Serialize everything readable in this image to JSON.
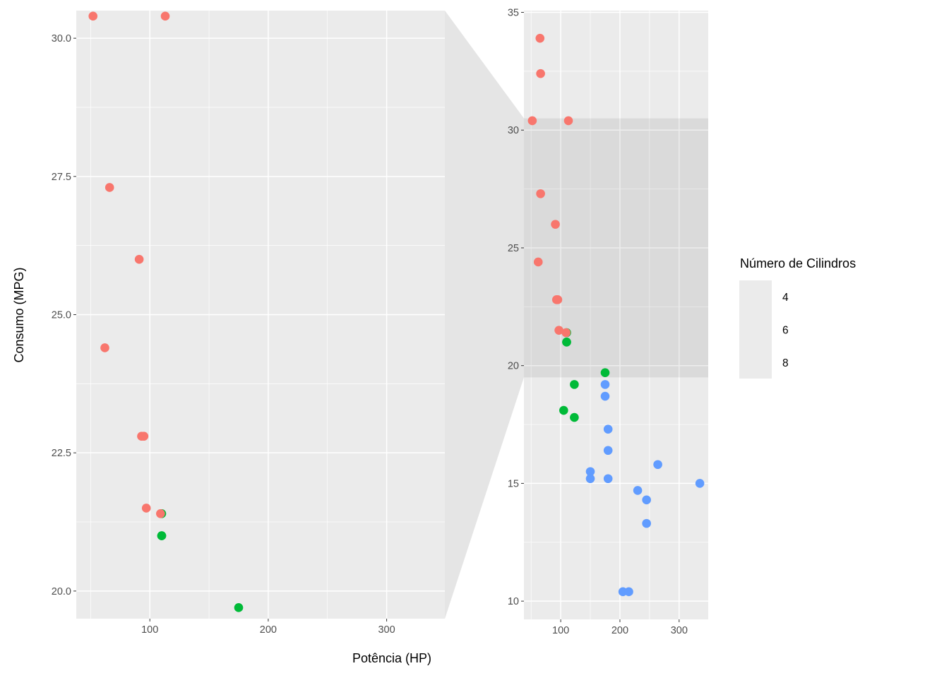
{
  "chart_data": {
    "type": "scatter",
    "subtype": "facet-zoom",
    "xlabel": "Potência (HP)",
    "ylabel": "Consumo (MPG)",
    "legend": {
      "title": "Número de Cilindros",
      "placement": "right",
      "entries": [
        {
          "label": "4",
          "color": "#F8766D"
        },
        {
          "label": "6",
          "color": "#00BA38"
        },
        {
          "label": "8",
          "color": "#619CFF"
        }
      ]
    },
    "full_panel": {
      "xlim": [
        37.85,
        349.15
      ],
      "ylim": [
        9.225,
        35.075
      ],
      "x_ticks": [
        "100",
        "200",
        "300"
      ],
      "x_tick_values": [
        100,
        200,
        300
      ],
      "y_ticks": [
        "10",
        "15",
        "20",
        "25",
        "30",
        "35"
      ],
      "y_tick_values": [
        10,
        15,
        20,
        25,
        30,
        35
      ]
    },
    "zoom_panel": {
      "xlim": [
        37.85,
        349.15
      ],
      "ylim": [
        19.5,
        30.5
      ],
      "x_ticks": [
        "100",
        "200",
        "300"
      ],
      "x_tick_values": [
        100,
        200,
        300
      ],
      "y_ticks": [
        "20.0",
        "22.5",
        "25.0",
        "27.5",
        "30.0"
      ],
      "y_tick_values": [
        20,
        22.5,
        25,
        27.5,
        30
      ]
    },
    "points": [
      [
        110,
        21.0,
        "6"
      ],
      [
        110,
        21.0,
        "6"
      ],
      [
        93,
        22.8,
        "4"
      ],
      [
        110,
        21.4,
        "6"
      ],
      [
        175,
        18.7,
        "8"
      ],
      [
        105,
        18.1,
        "6"
      ],
      [
        245,
        14.3,
        "8"
      ],
      [
        62,
        24.4,
        "4"
      ],
      [
        95,
        22.8,
        "4"
      ],
      [
        123,
        19.2,
        "6"
      ],
      [
        123,
        17.8,
        "6"
      ],
      [
        180,
        16.4,
        "8"
      ],
      [
        180,
        17.3,
        "8"
      ],
      [
        180,
        15.2,
        "8"
      ],
      [
        205,
        10.4,
        "8"
      ],
      [
        215,
        10.4,
        "8"
      ],
      [
        230,
        14.7,
        "8"
      ],
      [
        66,
        32.4,
        "4"
      ],
      [
        52,
        30.4,
        "4"
      ],
      [
        65,
        33.9,
        "4"
      ],
      [
        97,
        21.5,
        "4"
      ],
      [
        150,
        15.5,
        "8"
      ],
      [
        150,
        15.2,
        "8"
      ],
      [
        245,
        13.3,
        "8"
      ],
      [
        175,
        19.2,
        "8"
      ],
      [
        66,
        27.3,
        "4"
      ],
      [
        91,
        26.0,
        "4"
      ],
      [
        113,
        30.4,
        "4"
      ],
      [
        264,
        15.8,
        "8"
      ],
      [
        175,
        19.7,
        "6"
      ],
      [
        335,
        15.0,
        "8"
      ],
      [
        109,
        21.4,
        "4"
      ]
    ]
  }
}
